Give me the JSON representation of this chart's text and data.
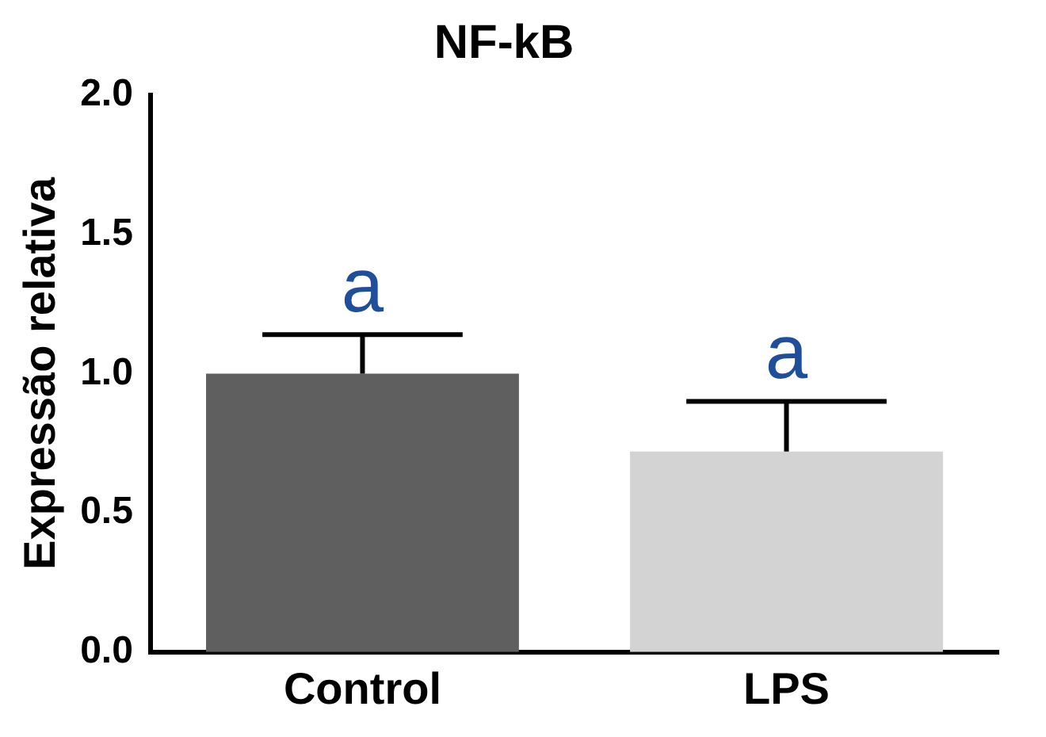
{
  "chart_data": {
    "type": "bar",
    "title": "NF-kB",
    "ylabel": "Expressão relativa",
    "categories": [
      "Control",
      "LPS"
    ],
    "values": [
      1.0,
      0.72
    ],
    "colors": [
      "#5f5f5f",
      "#d3d3d3"
    ],
    "errors": [
      [
        1.0,
        1.14
      ],
      [
        0.72,
        0.9
      ]
    ],
    "ylim": [
      0,
      2
    ],
    "yticks": [
      {
        "value": 0,
        "label": "0.0"
      },
      {
        "value": 0.5,
        "label": "0.5"
      },
      {
        "value": 1,
        "label": "1.0"
      },
      {
        "value": 1.5,
        "label": "1.5"
      },
      {
        "value": 2,
        "label": "2.0"
      }
    ],
    "grid": false,
    "legend": false,
    "annotations": [
      {
        "text": "a",
        "x": "Control",
        "y": 1.14
      },
      {
        "text": "a",
        "x": "LPS",
        "y": 0.9
      }
    ]
  }
}
